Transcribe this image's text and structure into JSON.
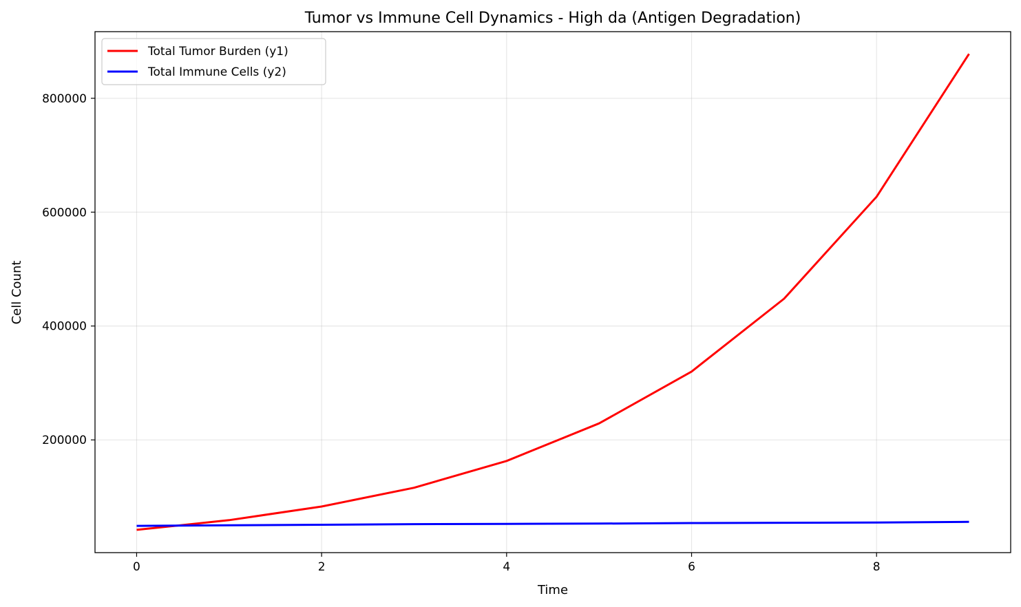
{
  "chart_data": {
    "type": "line",
    "title": "Tumor vs Immune Cell Dynamics - High da (Antigen Degradation)",
    "xlabel": "Time",
    "ylabel": "Cell Count",
    "x": [
      0,
      1,
      2,
      3,
      4,
      5,
      6,
      7,
      8,
      9
    ],
    "xlim": [
      -0.45,
      9.45
    ],
    "ylim": [
      2000,
      917000
    ],
    "xticks": [
      0,
      2,
      4,
      6,
      8
    ],
    "xtick_labels": [
      "0",
      "2",
      "4",
      "6",
      "8"
    ],
    "yticks": [
      200000,
      400000,
      600000,
      800000
    ],
    "ytick_labels": [
      "200000",
      "400000",
      "600000",
      "800000"
    ],
    "grid": true,
    "legend_position": "upper-left",
    "series": [
      {
        "name": "Total Tumor Burden (y1)",
        "color": "#ff0000",
        "values": [
          42000,
          59000,
          83000,
          116000,
          163000,
          229000,
          320000,
          448000,
          627000,
          878000
        ]
      },
      {
        "name": "Total Immune Cells (y2)",
        "color": "#0000ff",
        "values": [
          49000,
          50000,
          51000,
          52000,
          52500,
          53000,
          54000,
          54500,
          55000,
          56000
        ]
      }
    ]
  }
}
